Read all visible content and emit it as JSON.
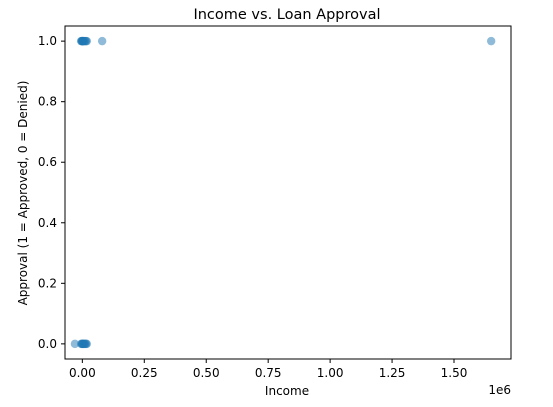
{
  "chart_data": {
    "type": "scatter",
    "title": "Income vs. Loan Approval",
    "xlabel": "Income",
    "ylabel": "Approval (1 = Approved, 0 = Denied)",
    "x_offset_label": "1e6",
    "x_scale": 1000000,
    "xlim": [
      -70000,
      1730000
    ],
    "ylim": [
      -0.05,
      1.05
    ],
    "x_ticks": [
      0,
      250000,
      500000,
      750000,
      1000000,
      1250000,
      1500000
    ],
    "x_tick_labels": [
      "0.00",
      "0.25",
      "0.50",
      "0.75",
      "1.00",
      "1.25",
      "1.50"
    ],
    "y_ticks": [
      0.0,
      0.2,
      0.4,
      0.6,
      0.8,
      1.0
    ],
    "y_tick_labels": [
      "0.0",
      "0.2",
      "0.4",
      "0.6",
      "0.8",
      "1.0"
    ],
    "grid": false,
    "marker_color": "#1f77b4",
    "marker_alpha": 0.5,
    "series": [
      {
        "points": [
          {
            "x": -5000,
            "y": 1
          },
          {
            "x": -3000,
            "y": 1
          },
          {
            "x": -1000,
            "y": 1
          },
          {
            "x": 0,
            "y": 1
          },
          {
            "x": 1000,
            "y": 1
          },
          {
            "x": 2000,
            "y": 1
          },
          {
            "x": 3000,
            "y": 1
          },
          {
            "x": 5000,
            "y": 1
          },
          {
            "x": 8000,
            "y": 1
          },
          {
            "x": 12000,
            "y": 1
          },
          {
            "x": 15000,
            "y": 1
          },
          {
            "x": 18000,
            "y": 1
          },
          {
            "x": 80000,
            "y": 1
          },
          {
            "x": 1650000,
            "y": 1
          },
          {
            "x": -30000,
            "y": 0
          },
          {
            "x": -5000,
            "y": 0
          },
          {
            "x": -2000,
            "y": 0
          },
          {
            "x": 0,
            "y": 0
          },
          {
            "x": 2000,
            "y": 0
          },
          {
            "x": 4000,
            "y": 0
          },
          {
            "x": 6000,
            "y": 0
          },
          {
            "x": 9000,
            "y": 0
          },
          {
            "x": 12000,
            "y": 0
          },
          {
            "x": 15000,
            "y": 0
          },
          {
            "x": 18000,
            "y": 0
          }
        ]
      }
    ]
  }
}
